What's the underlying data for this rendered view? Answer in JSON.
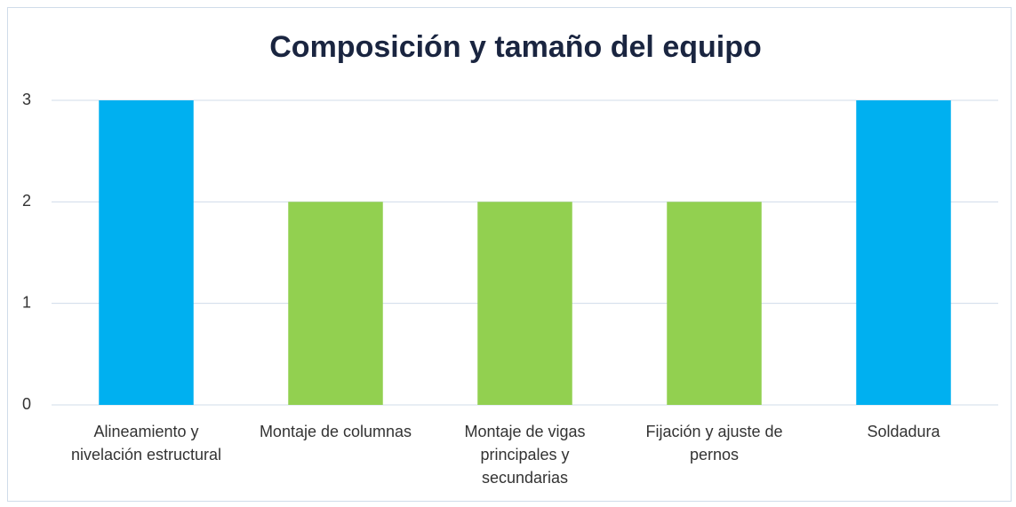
{
  "chart_data": {
    "type": "bar",
    "title": "Composición y tamaño del equipo",
    "categories": [
      "Alineamiento y nivelación estructural",
      "Montaje de columnas",
      "Montaje de vigas principales y secundarias",
      "Fijación y ajuste de pernos",
      "Soldadura"
    ],
    "values": [
      3,
      2,
      2,
      2,
      3
    ],
    "colors": [
      "#00b0f0",
      "#92d050",
      "#92d050",
      "#92d050",
      "#00b0f0"
    ],
    "ylim": [
      0,
      3
    ],
    "yticks": [
      0,
      1,
      2,
      3
    ],
    "grid": true
  }
}
